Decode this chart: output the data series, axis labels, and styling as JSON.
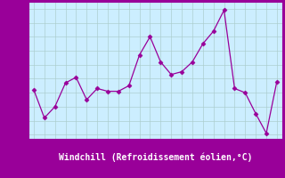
{
  "x": [
    0,
    1,
    2,
    3,
    4,
    5,
    6,
    7,
    8,
    9,
    10,
    11,
    12,
    13,
    14,
    15,
    16,
    17,
    18,
    19,
    20,
    21,
    22,
    23
  ],
  "y": [
    3.2,
    1.2,
    2.0,
    3.7,
    4.1,
    2.5,
    3.3,
    3.1,
    3.1,
    3.5,
    5.7,
    7.0,
    5.2,
    4.3,
    4.5,
    5.2,
    6.5,
    7.4,
    8.9,
    3.3,
    3.0,
    1.5,
    0.1,
    3.8
  ],
  "line_color": "#990099",
  "marker": "D",
  "marker_size": 2.5,
  "bg_color": "#cceeff",
  "plot_bg": "#cceeff",
  "grid_color": "#aacccc",
  "xlabel": "Windchill (Refroidissement éolien,°C)",
  "xlim": [
    -0.5,
    23.5
  ],
  "ylim": [
    -0.3,
    9.5
  ],
  "xticks": [
    0,
    1,
    2,
    3,
    4,
    5,
    6,
    7,
    8,
    9,
    10,
    11,
    12,
    13,
    14,
    15,
    16,
    17,
    18,
    19,
    20,
    21,
    22,
    23
  ],
  "yticks": [
    0,
    1,
    2,
    3,
    4,
    5,
    6,
    7,
    8,
    9
  ],
  "xlabel_fontsize": 7,
  "tick_fontsize": 6.5,
  "axis_color": "#990099",
  "tick_color": "#990099",
  "spine_color": "#990099",
  "xlabel_bg": "#990099",
  "xlabel_text_color": "#ffffff"
}
